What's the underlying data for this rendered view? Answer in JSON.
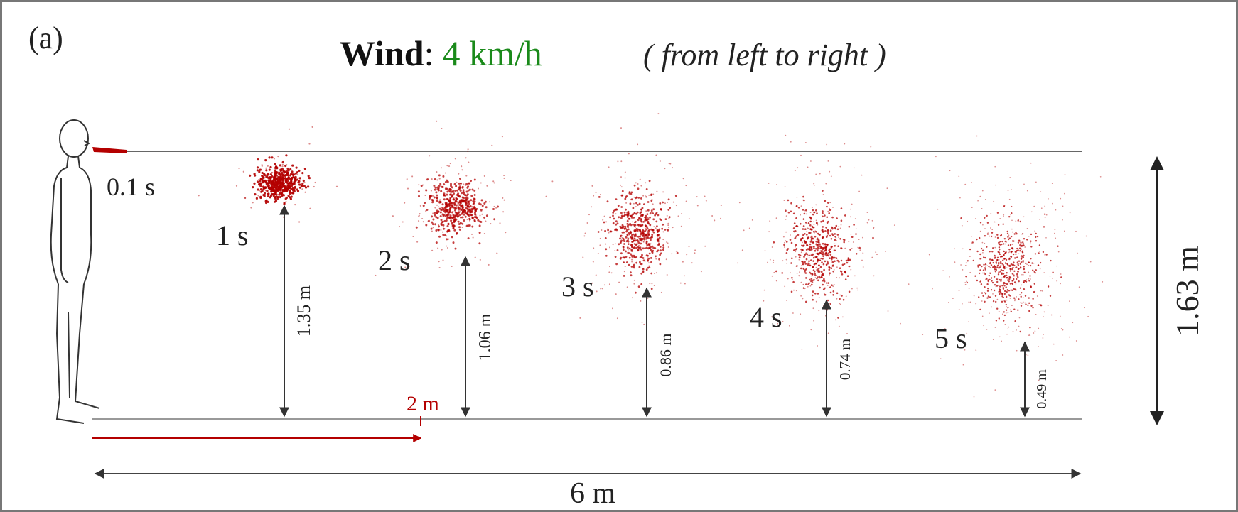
{
  "panel_label": "(a)",
  "title": {
    "prefix": "Wind",
    "colon": ":",
    "speed": "4 km/h",
    "direction": "( from left to right )"
  },
  "colors": {
    "speed": "#1a8a1a",
    "droplet": "#b40000",
    "reference_line": "#b40000",
    "line": "#555555",
    "frame": "#777777"
  },
  "release": {
    "time": "0.1 s"
  },
  "clouds": [
    {
      "time": "1 s",
      "height": "1.35 m",
      "spread": "small"
    },
    {
      "time": "2 s",
      "height": "1.06 m",
      "spread": "medium"
    },
    {
      "time": "3 s",
      "height": "0.86 m",
      "spread": "large"
    },
    {
      "time": "4 s",
      "height": "0.74 m",
      "spread": "larger"
    },
    {
      "time": "5 s",
      "height": "0.49 m",
      "spread": "largest"
    }
  ],
  "reference_distance": "2 m",
  "total_distance": "6 m",
  "mouth_height": "1.63 m",
  "icons": {
    "person": "standing-person-outline"
  }
}
